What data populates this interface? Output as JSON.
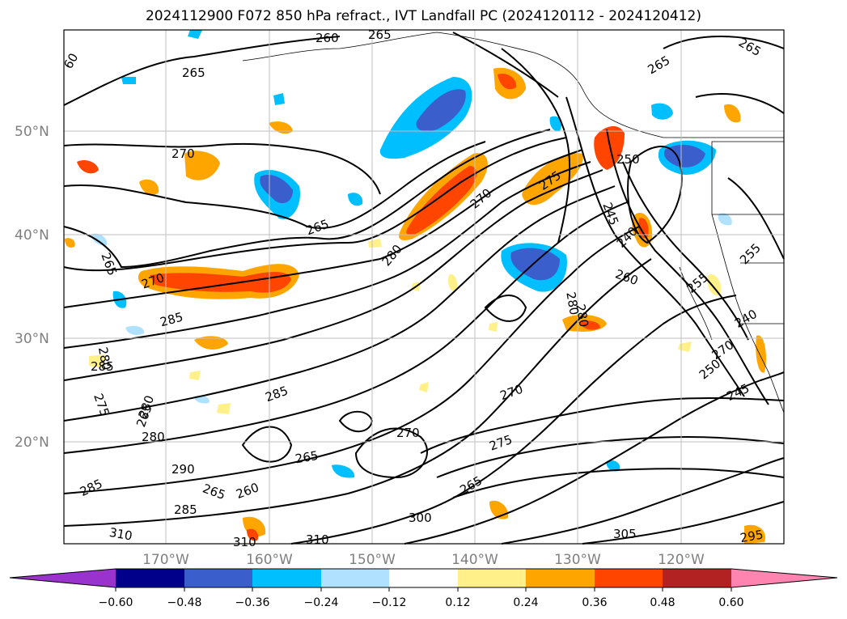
{
  "title": "2024112900 F072 850 hPa refract., IVT Landfall PC (2024120112 - 2024120412)",
  "map": {
    "lat_labels": [
      "50°N",
      "40°N",
      "30°N",
      "20°N"
    ],
    "lon_labels": [
      "170°W",
      "160°W",
      "150°W",
      "140°W",
      "130°W",
      "120°W"
    ],
    "contour_labels": [
      "260",
      "265",
      "265",
      "60",
      "265",
      "265",
      "270",
      "265",
      "270",
      "280",
      "275",
      "250",
      "245",
      "240",
      "255",
      "265",
      "270",
      "285",
      "285",
      "260",
      "280",
      "255",
      "250",
      "245",
      "240",
      "280",
      "285",
      "280",
      "275",
      "270",
      "265",
      "280",
      "270",
      "275",
      "265",
      "290",
      "285",
      "265",
      "260",
      "285",
      "300",
      "305",
      "310",
      "310",
      "310",
      "295",
      "280",
      "270",
      "265"
    ],
    "colors": {
      "neg_060": "#9a32cd",
      "neg_048": "#00008b",
      "neg_036": "#3a5fcd",
      "neg_024": "#00bfff",
      "neg_012": "#b0e2ff",
      "zero": "#ffffff",
      "pos_012": "#fff08a",
      "pos_024": "#ffa500",
      "pos_036": "#ff4500",
      "pos_048": "#b22222",
      "pos_060": "#ff85b0"
    }
  },
  "colorbar": {
    "ticks": [
      "−0.60",
      "−0.48",
      "−0.36",
      "−0.24",
      "−0.12",
      "0.12",
      "0.24",
      "0.36",
      "0.48",
      "0.60"
    ],
    "bins": [
      {
        "color": "#9a32cd"
      },
      {
        "color": "#00008b"
      },
      {
        "color": "#3a5fcd"
      },
      {
        "color": "#00bfff"
      },
      {
        "color": "#b0e2ff"
      },
      {
        "color": "#ffffff"
      },
      {
        "color": "#fff08a"
      },
      {
        "color": "#ffa500"
      },
      {
        "color": "#ff4500"
      },
      {
        "color": "#b22222"
      },
      {
        "color": "#ff85b0"
      }
    ]
  }
}
